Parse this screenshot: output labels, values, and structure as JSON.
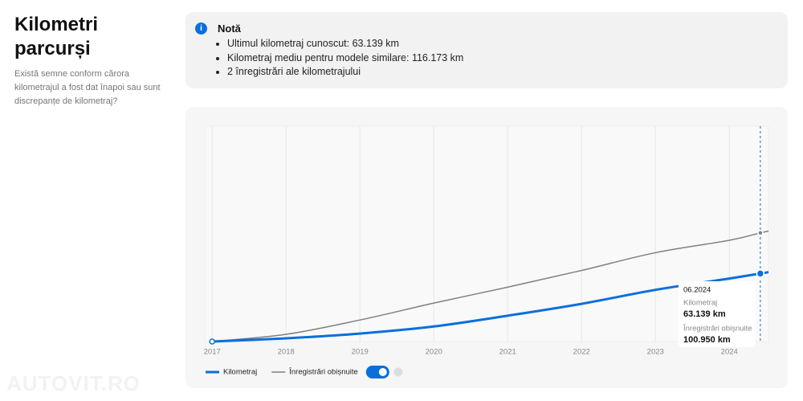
{
  "header": {
    "title": "Kilometri parcurși",
    "description": "Există semne conform cărora kilometrajul a fost dat înapoi sau sunt discrepanțe de kilometraj?"
  },
  "note": {
    "title": "Notă",
    "items": [
      "Ultimul kilometraj cunoscut: 63.139 km",
      "Kilometraj mediu pentru modele similare: 116.173 km",
      "2 înregistrări ale kilometrajului"
    ]
  },
  "watermark": "AUTOVIT.RO",
  "chart_data": {
    "type": "line",
    "x": [
      2017,
      2018,
      2019,
      2020,
      2021,
      2022,
      2023,
      2024,
      2024.42,
      2024.53
    ],
    "xlim": [
      2016.9,
      2024.53
    ],
    "xticks": [
      2017,
      2018,
      2019,
      2020,
      2021,
      2022,
      2023,
      2024
    ],
    "ylim": [
      0,
      200000
    ],
    "grid": true,
    "series": [
      {
        "name": "Kilometraj",
        "color": "#0a6fdc",
        "values": [
          0,
          3000,
          7400,
          14000,
          24000,
          35000,
          48000,
          58500,
          63139,
          64500
        ]
      },
      {
        "name": "Înregistrări obișnuite",
        "color": "#808080",
        "values": [
          0,
          6700,
          20000,
          35700,
          50500,
          66000,
          82500,
          94000,
          100950,
          102500
        ]
      }
    ],
    "tooltip": {
      "date": "06.2024",
      "values": [
        "63.139 km",
        "100.950 km"
      ]
    }
  }
}
